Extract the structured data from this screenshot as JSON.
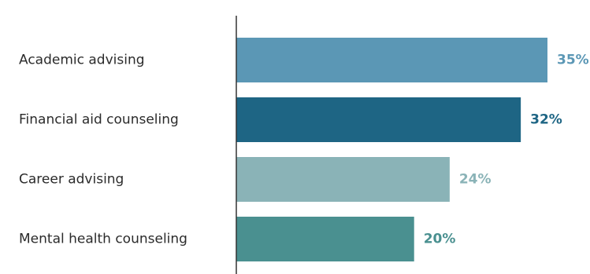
{
  "chart_data": {
    "type": "bar",
    "orientation": "horizontal",
    "categories": [
      "Academic advising",
      "Financial aid counseling",
      "Career advising",
      "Mental health counseling"
    ],
    "values": [
      35,
      32,
      24,
      20
    ],
    "value_labels": [
      "35%",
      "32%",
      "24%",
      "20%"
    ],
    "colors": [
      "#5b97b5",
      "#1e6584",
      "#8ab3b7",
      "#4a9090"
    ],
    "axis_color": "#333333",
    "xlim": [
      0,
      35
    ],
    "grid": false,
    "legend": "none"
  }
}
